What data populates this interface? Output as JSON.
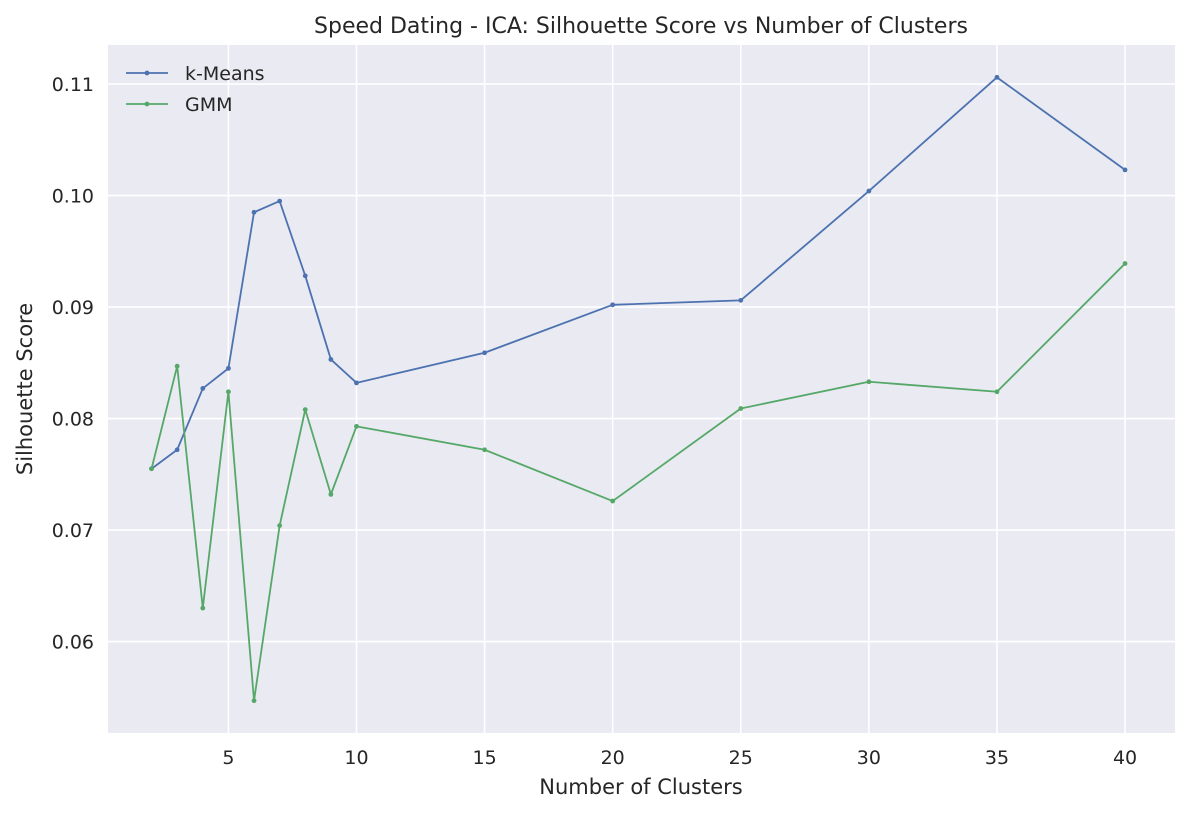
{
  "chart_data": {
    "type": "line",
    "title": "Speed Dating - ICA: Silhouette Score vs Number of Clusters",
    "xlabel": "Number of Clusters",
    "ylabel": "Silhouette Score",
    "x": [
      2,
      3,
      4,
      5,
      6,
      7,
      8,
      9,
      10,
      15,
      20,
      25,
      30,
      35,
      40
    ],
    "xlim": [
      0.3,
      41.95
    ],
    "ylim": [
      0.0518,
      0.1135
    ],
    "xticks": [
      5,
      10,
      15,
      20,
      25,
      30,
      35,
      40
    ],
    "yticks": [
      0.06,
      0.07,
      0.08,
      0.09,
      0.1,
      0.11
    ],
    "xtick_labels": [
      "5",
      "10",
      "15",
      "20",
      "25",
      "30",
      "35",
      "40"
    ],
    "ytick_labels": [
      "0.06",
      "0.07",
      "0.08",
      "0.09",
      "0.10",
      "0.11"
    ],
    "grid": true,
    "legend_position": "top-left",
    "colors": {
      "background": "#eaeaf2",
      "grid": "#ffffff"
    },
    "series": [
      {
        "name": "k-Means",
        "color": "#4c72b0",
        "values": [
          0.0755,
          0.0772,
          0.0827,
          0.0845,
          0.0985,
          0.0995,
          0.0928,
          0.0853,
          0.0832,
          0.0859,
          0.0902,
          0.0906,
          0.1004,
          0.1106,
          0.1023
        ]
      },
      {
        "name": "GMM",
        "color": "#55a868",
        "values": [
          0.0755,
          0.0847,
          0.063,
          0.0824,
          0.0547,
          0.0704,
          0.0808,
          0.0732,
          0.0793,
          0.0772,
          0.0726,
          0.0809,
          0.0833,
          0.0824,
          0.0939
        ]
      }
    ]
  }
}
